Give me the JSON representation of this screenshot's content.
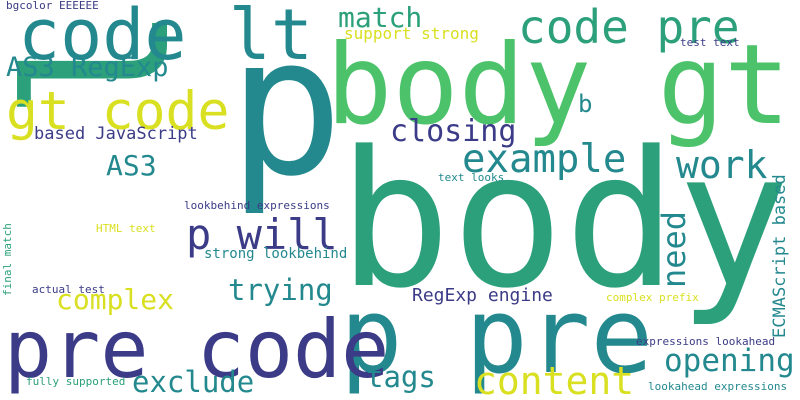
{
  "palette": {
    "background": "#ffffff",
    "dark_purple": "#3b3b87",
    "teal": "#23898e",
    "green": "#2ba07a",
    "light_green": "#4cc26a",
    "yellow": "#d9e021"
  },
  "words": [
    {
      "text": "body",
      "color": "#2ba07a"
    },
    {
      "text": "lt",
      "color": "#2ba07a"
    },
    {
      "text": "p",
      "color": "#23898e"
    },
    {
      "text": "body gt",
      "color": "#4cc26a"
    },
    {
      "text": "p pre",
      "color": "#23898e"
    },
    {
      "text": "pre code",
      "color": "#3b3b87"
    },
    {
      "text": "code lt",
      "color": "#23898e"
    },
    {
      "text": "code pre",
      "color": "#2ba07a"
    },
    {
      "text": "gt code",
      "color": "#d9e021"
    },
    {
      "text": "p will",
      "color": "#3b3b87"
    },
    {
      "text": "example",
      "color": "#23898e"
    },
    {
      "text": "content",
      "color": "#d9e021"
    },
    {
      "text": "work",
      "color": "#23898e"
    },
    {
      "text": "opening",
      "color": "#23898e"
    },
    {
      "text": "match",
      "color": "#2ba07a"
    },
    {
      "text": "AS3 RegExp",
      "color": "#23898e"
    },
    {
      "text": "closing",
      "color": "#3b3b87"
    },
    {
      "text": "exclude",
      "color": "#23898e"
    },
    {
      "text": "tags",
      "color": "#23898e"
    },
    {
      "text": "complex",
      "color": "#d9e021"
    },
    {
      "text": "trying",
      "color": "#23898e"
    },
    {
      "text": "need",
      "color": "#23898e"
    },
    {
      "text": "AS3",
      "color": "#23898e"
    },
    {
      "text": "b",
      "color": "#23898e"
    },
    {
      "text": "based JavaScript",
      "color": "#3b3b87"
    },
    {
      "text": "RegExp engine",
      "color": "#3b3b87"
    },
    {
      "text": "support strong",
      "color": "#d9e021"
    },
    {
      "text": "ECMAScript based",
      "color": "#23898e"
    },
    {
      "text": "strong lookbehind",
      "color": "#23898e"
    },
    {
      "text": "bgcolor EEEEEE",
      "color": "#3b3b87"
    },
    {
      "text": "test text",
      "color": "#3b3b87"
    },
    {
      "text": "text looks",
      "color": "#23898e"
    },
    {
      "text": "lookbehind expressions",
      "color": "#3b3b87"
    },
    {
      "text": "HTML text",
      "color": "#d9e021"
    },
    {
      "text": "actual test",
      "color": "#3b3b87"
    },
    {
      "text": "complex prefix",
      "color": "#d9e021"
    },
    {
      "text": "expressions lookahead",
      "color": "#3b3b87"
    },
    {
      "text": "lookahead expressions",
      "color": "#23898e"
    },
    {
      "text": "fully supported",
      "color": "#2ba07a"
    },
    {
      "text": "final match",
      "color": "#2ba07a"
    }
  ]
}
